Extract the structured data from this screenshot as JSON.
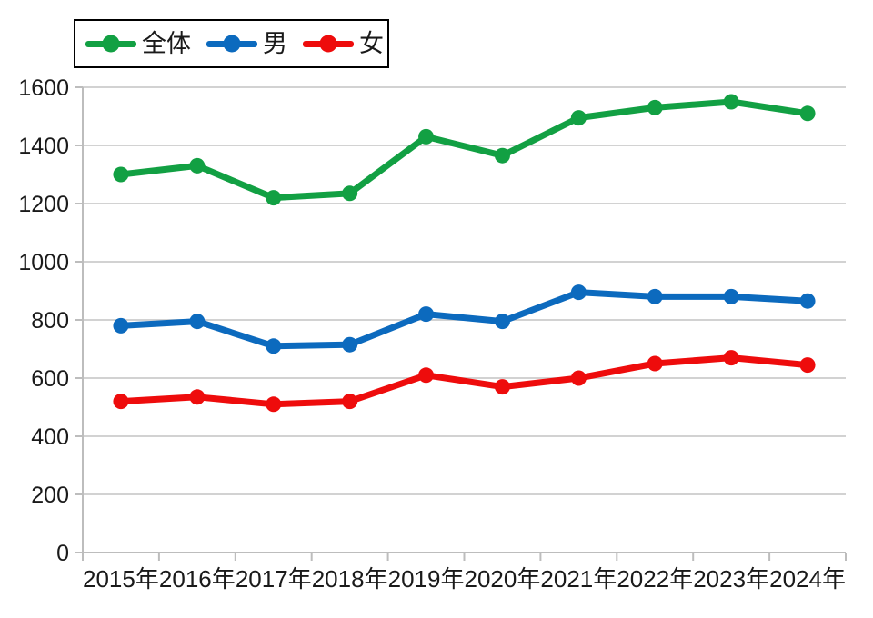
{
  "chart_data": {
    "type": "line",
    "title": "",
    "xlabel": "",
    "ylabel": "",
    "categories": [
      "2015年",
      "2016年",
      "2017年",
      "2018年",
      "2019年",
      "2020年",
      "2021年",
      "2022年",
      "2023年",
      "2024年"
    ],
    "series": [
      {
        "name": "全体",
        "color": "#12A043",
        "values": [
          1300,
          1330,
          1220,
          1235,
          1430,
          1365,
          1495,
          1530,
          1550,
          1510
        ]
      },
      {
        "name": "男",
        "color": "#0C6ABE",
        "values": [
          780,
          795,
          710,
          715,
          820,
          795,
          895,
          880,
          880,
          865
        ]
      },
      {
        "name": "女",
        "color": "#EE0C0C",
        "values": [
          520,
          535,
          510,
          520,
          610,
          570,
          600,
          650,
          670,
          645
        ]
      }
    ],
    "ylim": [
      0,
      1600
    ],
    "ytick_step": 200,
    "ytick_labels": [
      "0",
      "200",
      "400",
      "600",
      "800",
      "1000",
      "1200",
      "1400",
      "1600"
    ],
    "grid": "horizontal",
    "legend_position": "top-left",
    "legend_marker": "line-circle"
  },
  "colors": {
    "background": "#FFFFFF",
    "gridline": "#D2D2D2",
    "axis": "#BDBDBD",
    "text": "#1A1A1A",
    "legend_border": "#000000"
  }
}
